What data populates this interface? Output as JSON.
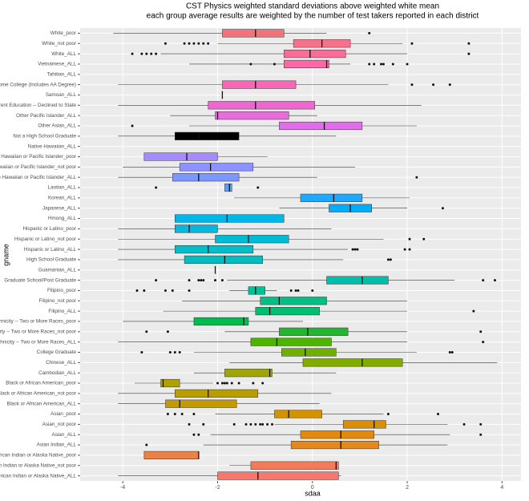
{
  "chart_data": {
    "type": "boxplot",
    "title": "CST Physics weighted standard deviations above weighted white mean",
    "subtitle": "each group average results are weighted by the number of test takers reported in each district",
    "x_label": "sdaa",
    "y_label": "gname",
    "xlim": [
      -4.9,
      4.4
    ],
    "xticks": [
      -4,
      -2,
      0,
      2,
      4
    ],
    "grid": true,
    "orientation": "horizontal",
    "categories": [
      "White_poor",
      "White_not poor",
      "White_ALL",
      "Vietnamese_ALL",
      "Tahitian_ALL",
      "Some College (Includes AA Degree)",
      "Samoan_ALL",
      "Parent Education -- Declined to State",
      "Other Pacific Islander_ALL",
      "Other Asian_ALL",
      "Not a High School Graduate",
      "Native Hawaiian_ALL",
      "Native Hawaiian or Pacific Islander_poor",
      "Native Hawaiian or Pacific Islander_not poor",
      "Native Hawaiian or Pacific Islander_ALL",
      "Laotian_ALL",
      "Korean_ALL",
      "Japanese_ALL",
      "Hmong_ALL",
      "Hispanic or Latino_poor",
      "Hispanic or Latino_not poor",
      "Hispanic or Latino_ALL",
      "High School Graduate",
      "Guamanian_ALL",
      "Graduate School/Post Graduate",
      "Filipino_poor",
      "Filipino_not poor",
      "Filipino_ALL",
      "Ethnicity -- Two or More Races_poor",
      "Ethnicity -- Two or More Races_not poor",
      "Ethnicity -- Two or More Races_ALL",
      "College Graduate",
      "Chinese_ALL",
      "Cambodian_ALL",
      "Black or African American_poor",
      "Black or African American_not poor",
      "Black or African American_ALL",
      "Asian_poor",
      "Asian_not poor",
      "Asian_ALL",
      "Asian Indian_ALL",
      "American Indian or Alaska Native_poor",
      "American Indian or Alaska Native_not poor",
      "American Indian or Alaska Native_ALL"
    ],
    "colors": [
      "#F4727A",
      "#F8718A",
      "#FB6C98",
      "#FC68A6",
      null,
      "#F966B8",
      "#F564C8",
      "#F066D0",
      "#E86CDE",
      "#E06EEA",
      null,
      null,
      "#A58BFF",
      "#8E92FF",
      "#7A98FF",
      "#55A0FF",
      "#1FA8FF",
      "#00ADF8",
      "#00B5E8",
      "#00B9E0",
      "#00BBD4",
      "#00BDCA",
      "#00BEC2",
      "#00BFBA",
      "#00BFAA",
      "#00C096",
      "#00C084",
      "#00BF70",
      "#00BC4E",
      "#21B830",
      "#4DB400",
      "#70AF00",
      "#83AC00",
      "#A0A600",
      "#AEA200",
      "#B99E00",
      "#C49A00",
      "#D39200",
      "#DA8E00",
      "#E08A10",
      "#E38920",
      "#EE8042",
      "#F37B59",
      "#F8766D"
    ],
    "boxes": [
      {
        "low": -4.2,
        "q1": -1.9,
        "median": -1.2,
        "q3": -0.6,
        "high": 0.3,
        "outliers": [
          1.2
        ]
      },
      {
        "low": -2.0,
        "q1": -0.4,
        "median": 0.2,
        "q3": 0.8,
        "high": 1.9,
        "outliers": [
          -3.1,
          -2.7,
          -2.6,
          -2.5,
          -2.4,
          -2.3,
          -2.2,
          2.1,
          3.3
        ]
      },
      {
        "low": -3.2,
        "q1": -0.6,
        "median": -0.05,
        "q3": 0.7,
        "high": 2.0,
        "outliers": [
          -3.8,
          -3.6,
          -3.5,
          -3.4,
          -3.3,
          3.3
        ]
      },
      {
        "low": -2.6,
        "q1": -0.6,
        "median": 0.3,
        "q3": 0.35,
        "high": 0.8,
        "outliers": [
          -1.3,
          -0.8,
          1.2,
          1.3,
          1.45,
          1.5,
          1.7,
          2.0
        ]
      },
      null,
      {
        "low": -4.1,
        "q1": -1.9,
        "median": -1.2,
        "q3": -0.35,
        "high": 1.6,
        "outliers": [
          2.1,
          2.55,
          2.9
        ]
      },
      {
        "low": -1.9,
        "q1": -1.9,
        "median": -1.9,
        "q3": -1.9,
        "high": -1.9,
        "outliers": []
      },
      {
        "low": -4.1,
        "q1": -2.2,
        "median": -1.2,
        "q3": 0.05,
        "high": 2.3,
        "outliers": []
      },
      {
        "low": -3.0,
        "q1": -2.05,
        "median": -2.0,
        "q3": -0.5,
        "high": 0.1,
        "outliers": []
      },
      {
        "low": -2.6,
        "q1": -0.7,
        "median": 0.25,
        "q3": 1.05,
        "high": 2.2,
        "outliers": [
          -3.8
        ]
      },
      {
        "low": -4.1,
        "q1": -2.9,
        "median": -2.4,
        "q3": -1.55,
        "high": 0.5,
        "outliers": []
      },
      null,
      {
        "low": -3.55,
        "q1": -3.55,
        "median": -2.65,
        "q3": -2.0,
        "high": -0.95,
        "outliers": []
      },
      {
        "low": -4.0,
        "q1": -2.8,
        "median": -2.15,
        "q3": -1.25,
        "high": 0.9,
        "outliers": []
      },
      {
        "low": -4.1,
        "q1": -2.95,
        "median": -2.4,
        "q3": -1.55,
        "high": 0.1,
        "outliers": [
          2.2
        ]
      },
      {
        "low": -1.85,
        "q1": -1.85,
        "median": -1.75,
        "q3": -1.7,
        "high": -1.7,
        "outliers": [
          -3.3,
          -1.15
        ]
      },
      {
        "low": -1.65,
        "q1": -0.25,
        "median": 0.45,
        "q3": 1.05,
        "high": 2.05,
        "outliers": []
      },
      {
        "low": -0.7,
        "q1": 0.35,
        "median": 0.8,
        "q3": 1.25,
        "high": 2.0,
        "outliers": [
          2.75
        ]
      },
      {
        "low": -2.9,
        "q1": -2.9,
        "median": -1.8,
        "q3": -0.6,
        "high": -0.6,
        "outliers": []
      },
      {
        "low": -4.1,
        "q1": -2.9,
        "median": -2.6,
        "q3": -2.0,
        "high": 0.4,
        "outliers": []
      },
      {
        "low": -4.1,
        "q1": -2.05,
        "median": -1.35,
        "q3": -0.5,
        "high": 1.5,
        "outliers": [
          2.05,
          2.35
        ]
      },
      {
        "low": -4.1,
        "q1": -2.9,
        "median": -2.2,
        "q3": -1.25,
        "high": 0.75,
        "outliers": [
          0.85,
          0.9,
          0.95,
          1.95,
          2.05
        ]
      },
      {
        "low": -4.1,
        "q1": -2.7,
        "median": -1.85,
        "q3": -1.05,
        "high": 0.65,
        "outliers": [
          1.6,
          1.65
        ]
      },
      {
        "low": -2.05,
        "q1": -2.05,
        "median": -2.05,
        "q3": -2.05,
        "high": -2.05,
        "outliers": []
      },
      {
        "low": -1.8,
        "q1": 0.3,
        "median": 1.05,
        "q3": 1.6,
        "high": 3.0,
        "outliers": [
          -3.3,
          -2.6,
          -2.4,
          -2.35,
          -2.3,
          -2.05,
          -1.9,
          3.6,
          3.85
        ]
      },
      {
        "low": -1.75,
        "q1": -1.35,
        "median": -1.2,
        "q3": -1.0,
        "high": -0.75,
        "outliers": [
          -3.7,
          -3.55,
          -3.1,
          -2.95,
          -2.6,
          -0.45,
          -0.35,
          -0.3,
          0.0
        ]
      },
      {
        "low": -2.75,
        "q1": -1.1,
        "median": -0.7,
        "q3": 0.3,
        "high": 2.0,
        "outliers": []
      },
      {
        "low": -3.15,
        "q1": -1.2,
        "median": -0.9,
        "q3": 0.15,
        "high": 2.0,
        "outliers": [
          3.4
        ]
      },
      {
        "low": -4.0,
        "q1": -2.5,
        "median": -1.45,
        "q3": -1.35,
        "high": -0.2,
        "outliers": []
      },
      {
        "low": -1.85,
        "q1": -0.7,
        "median": -0.1,
        "q3": 0.75,
        "high": 2.0,
        "outliers": [
          -3.5,
          -3.05,
          3.55
        ]
      },
      {
        "low": -4.1,
        "q1": -1.3,
        "median": -0.75,
        "q3": 0.4,
        "high": 2.0,
        "outliers": [
          3.6
        ]
      },
      {
        "low": -2.5,
        "q1": -0.65,
        "median": -0.15,
        "q3": 0.5,
        "high": 2.2,
        "outliers": [
          -3.6,
          -3.0,
          -2.9,
          -2.8,
          2.9,
          2.95
        ]
      },
      {
        "low": -1.75,
        "q1": -0.2,
        "median": 1.05,
        "q3": 1.9,
        "high": 3.9,
        "outliers": []
      },
      {
        "low": -2.5,
        "q1": -1.85,
        "median": -0.9,
        "q3": -0.85,
        "high": 0.5,
        "outliers": []
      },
      {
        "low": -3.75,
        "q1": -3.2,
        "median": -3.15,
        "q3": -2.8,
        "high": -2.1,
        "outliers": [
          -2.0,
          -1.9,
          -1.85,
          -1.8,
          -1.7,
          -1.55,
          -1.25,
          -1.05
        ]
      },
      {
        "low": -4.1,
        "q1": -2.9,
        "median": -2.2,
        "q3": -1.15,
        "high": 0.4,
        "outliers": []
      },
      {
        "low": -4.1,
        "q1": -3.1,
        "median": -2.8,
        "q3": -1.6,
        "high": 0.15,
        "outliers": []
      },
      {
        "low": -2.05,
        "q1": -0.8,
        "median": -0.5,
        "q3": 0.2,
        "high": 1.5,
        "outliers": [
          -3.05,
          -2.9,
          -2.75,
          -2.5,
          1.6,
          2.65
        ]
      },
      {
        "low": -0.8,
        "q1": 0.65,
        "median": 1.3,
        "q3": 1.55,
        "high": 2.85,
        "outliers": [
          -2.6,
          -2.3,
          -1.65,
          -1.4,
          -1.3,
          -1.2,
          -1.1,
          -1.05,
          -0.95,
          -0.85,
          3.2,
          3.55
        ]
      },
      {
        "low": -2.15,
        "q1": -0.25,
        "median": 0.6,
        "q3": 1.3,
        "high": 2.9,
        "outliers": [
          -2.5,
          -2.4,
          3.55
        ]
      },
      {
        "low": -2.3,
        "q1": -0.45,
        "median": 0.6,
        "q3": 1.4,
        "high": 2.85,
        "outliers": [
          -3.5
        ]
      },
      {
        "low": -3.55,
        "q1": -3.55,
        "median": -2.4,
        "q3": -2.4,
        "high": -2.4,
        "outliers": []
      },
      {
        "low": -1.75,
        "q1": -1.3,
        "median": 0.5,
        "q3": 0.55,
        "high": 0.55,
        "outliers": []
      },
      {
        "low": -4.1,
        "q1": -2.0,
        "median": -1.15,
        "q3": 0.55,
        "high": 0.6,
        "outliers": []
      }
    ]
  }
}
